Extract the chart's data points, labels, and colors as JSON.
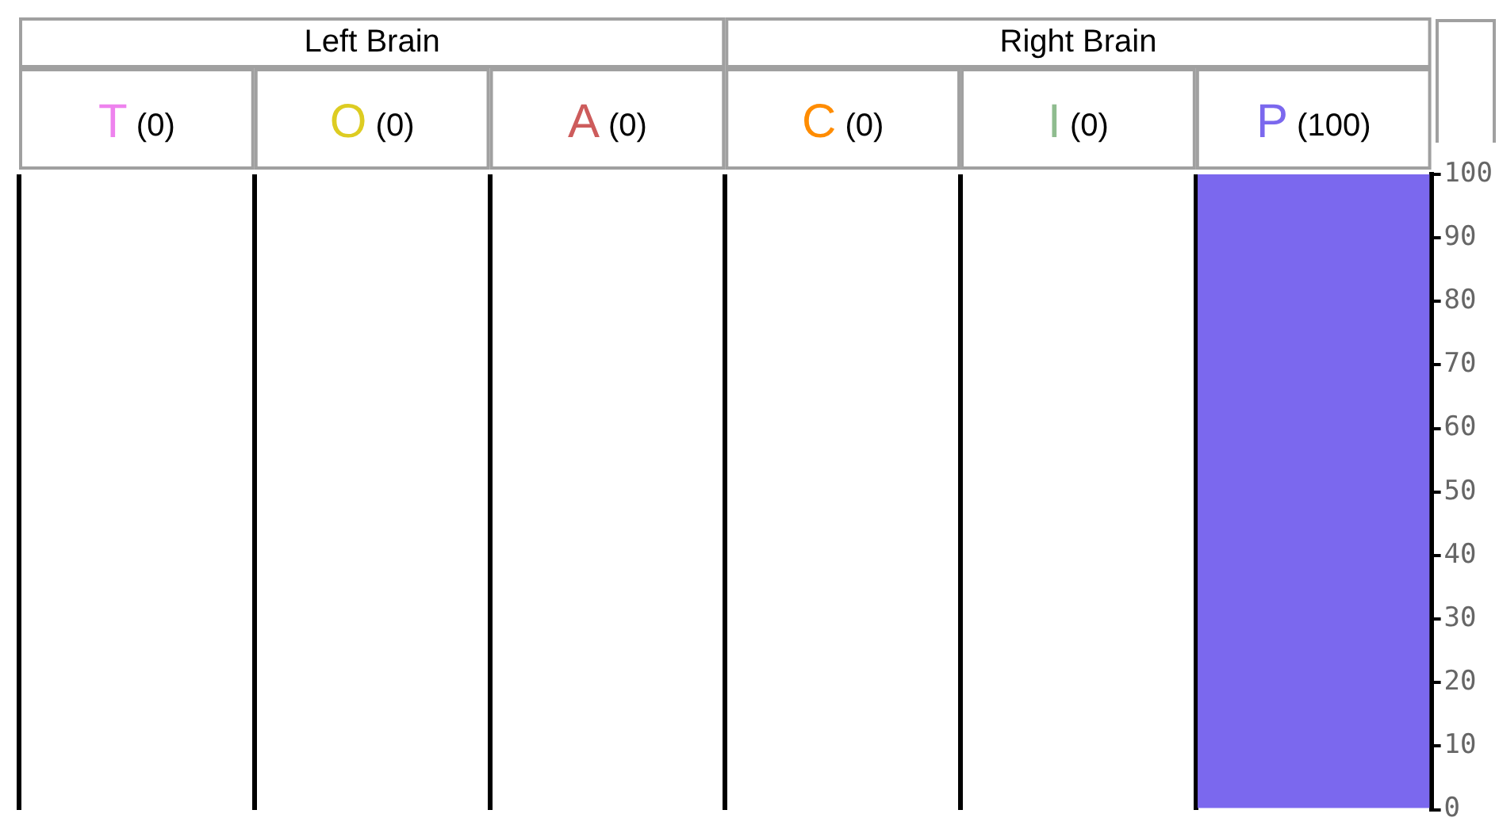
{
  "chart_data": {
    "type": "bar",
    "categories": [
      "T (0)",
      "O (0)",
      "A (0)",
      "C (0)",
      "I (0)",
      "P (100)"
    ],
    "values": [
      0,
      0,
      0,
      0,
      0,
      100
    ],
    "colors": [
      "#ee82ee",
      "#ddcc22",
      "#cd5c5c",
      "#ff8c00",
      "#8fbc8f",
      "#7b68ee"
    ],
    "annotations": [
      "Left Brain",
      "Right Brain"
    ],
    "ylim": [
      0,
      100
    ],
    "yticks": [
      0,
      10,
      20,
      30,
      40,
      50,
      60,
      70,
      80,
      90,
      100
    ],
    "grid": "x",
    "legend": false
  }
}
